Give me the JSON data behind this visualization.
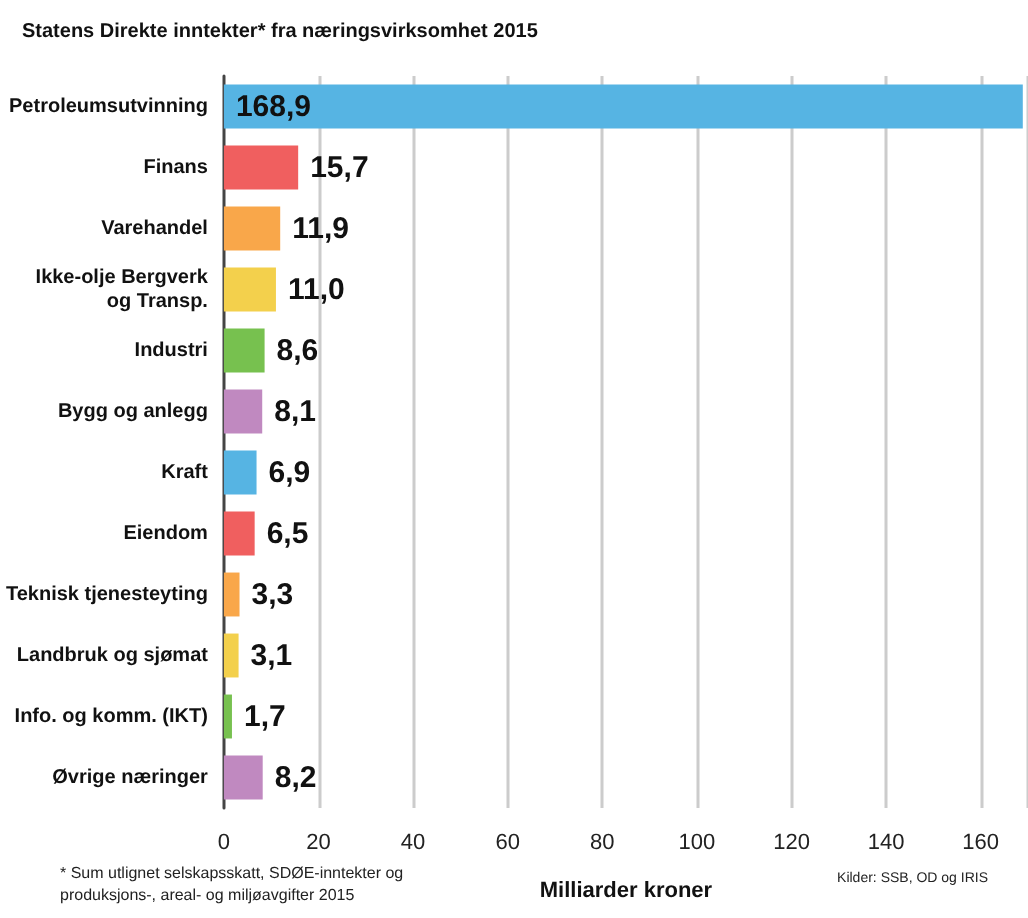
{
  "chart_data": {
    "type": "bar",
    "orientation": "horizontal",
    "title": "Statens Direkte inntekter* fra næringsvirksomhet 2015",
    "xlabel": "Milliarder kroner",
    "categories": [
      "Petroleumsutvinning",
      "Finans",
      "Varehandel",
      "Ikke-olje Bergverk\nog Transp.",
      "Industri",
      "Bygg og anlegg",
      "Kraft",
      "Eiendom",
      "Teknisk tjenesteyting",
      "Landbruk og sjømat",
      "Info. og komm. (IKT)",
      "Øvrige næringer"
    ],
    "values": [
      168.9,
      15.7,
      11.9,
      11.0,
      8.6,
      8.1,
      6.9,
      6.5,
      3.3,
      3.1,
      1.7,
      8.2
    ],
    "value_labels": [
      "168,9",
      "15,7",
      "11,9",
      "11,0",
      "8,6",
      "8,1",
      "6,9",
      "6,5",
      "3,3",
      "3,1",
      "1,7",
      "8,2"
    ],
    "colors": [
      "#56b4e3",
      "#f05f5f",
      "#f9a74a",
      "#f3d04c",
      "#77c14f",
      "#c089c0",
      "#56b4e3",
      "#f05f5f",
      "#f9a74a",
      "#f3d04c",
      "#77c14f",
      "#c089c0"
    ],
    "xlim": [
      0,
      170
    ],
    "xticks": [
      0,
      20,
      40,
      60,
      80,
      100,
      120,
      140,
      160
    ],
    "grid": "x",
    "annotations": [
      "* Sum utlignet selskapsskatt, SDØE-inntekter og produksjons-, areal- og miljøavgifter 2015",
      "Kilder: SSB, OD og IRIS"
    ]
  }
}
